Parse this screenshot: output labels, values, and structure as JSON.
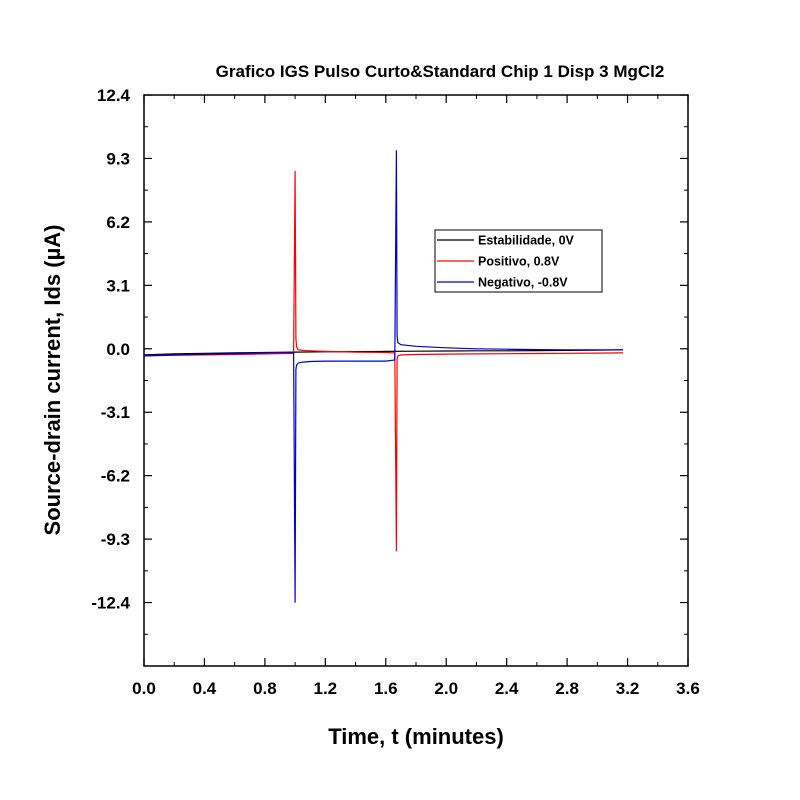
{
  "chart_data": {
    "type": "line",
    "title": "Grafico IGS Pulso Curto&Standard Chip 1 Disp 3 MgCl2",
    "xlabel": "Time, t (minutes)",
    "ylabel": "Source-drain current, Ids (µA)",
    "xlim": [
      0.0,
      3.6
    ],
    "ylim": [
      -15.5,
      12.4
    ],
    "x_ticks": [
      "0.0",
      "0.4",
      "0.8",
      "1.2",
      "1.6",
      "2.0",
      "2.4",
      "2.8",
      "3.2",
      "3.6"
    ],
    "y_ticks": [
      "12.4",
      "9.3",
      "6.2",
      "3.1",
      "0.0",
      "-3.1",
      "-6.2",
      "-9.3",
      "-12.4"
    ],
    "y_tick_values": [
      12.4,
      9.3,
      6.2,
      3.1,
      0.0,
      -3.1,
      -6.2,
      -9.3,
      -12.4
    ],
    "x_tick_values": [
      0.0,
      0.4,
      0.8,
      1.2,
      1.6,
      2.0,
      2.4,
      2.8,
      3.2,
      3.6
    ],
    "grid": false,
    "legend_position": "upper-right",
    "series": [
      {
        "name": "Estabilidade, 0V",
        "color": "#000000",
        "x": [
          0.0,
          0.2,
          0.4,
          0.6,
          0.8,
          1.0,
          1.2,
          1.4,
          1.6,
          1.8,
          2.0,
          2.2,
          2.4,
          2.6,
          2.8,
          3.0,
          3.17
        ],
        "y": [
          -0.3,
          -0.25,
          -0.22,
          -0.2,
          -0.18,
          -0.16,
          -0.15,
          -0.14,
          -0.13,
          -0.12,
          -0.11,
          -0.1,
          -0.1,
          -0.09,
          -0.08,
          -0.07,
          -0.05
        ]
      },
      {
        "name": "Positivo, 0.8V",
        "color": "#ff0000",
        "x": [
          0.0,
          0.2,
          0.4,
          0.6,
          0.8,
          0.99,
          1.0,
          1.005,
          1.01,
          1.02,
          1.05,
          1.1,
          1.2,
          1.4,
          1.6,
          1.66,
          1.67,
          1.675,
          1.68,
          1.7,
          1.8,
          2.0,
          2.2,
          2.4,
          2.6,
          2.8,
          3.0,
          3.17
        ],
        "y": [
          -0.35,
          -0.32,
          -0.3,
          -0.28,
          -0.25,
          -0.22,
          8.7,
          0.5,
          0.1,
          -0.05,
          -0.08,
          -0.1,
          -0.13,
          -0.16,
          -0.18,
          -0.2,
          -9.9,
          -0.5,
          -0.35,
          -0.3,
          -0.28,
          -0.26,
          -0.25,
          -0.24,
          -0.23,
          -0.22,
          -0.21,
          -0.2
        ]
      },
      {
        "name": "Negativo, -0.8V",
        "color": "#0000cc",
        "x": [
          0.0,
          0.2,
          0.4,
          0.6,
          0.8,
          0.99,
          1.0,
          1.005,
          1.01,
          1.02,
          1.05,
          1.1,
          1.2,
          1.4,
          1.6,
          1.66,
          1.67,
          1.675,
          1.68,
          1.7,
          1.8,
          2.0,
          2.2,
          2.4,
          2.6,
          2.8,
          3.0,
          3.17
        ],
        "y": [
          -0.35,
          -0.3,
          -0.27,
          -0.24,
          -0.2,
          -0.18,
          -12.4,
          -1.0,
          -0.8,
          -0.7,
          -0.65,
          -0.62,
          -0.6,
          -0.6,
          -0.6,
          -0.55,
          9.7,
          0.6,
          0.3,
          0.2,
          0.12,
          0.05,
          0.0,
          -0.02,
          -0.04,
          -0.05,
          -0.05,
          -0.05
        ]
      }
    ]
  }
}
